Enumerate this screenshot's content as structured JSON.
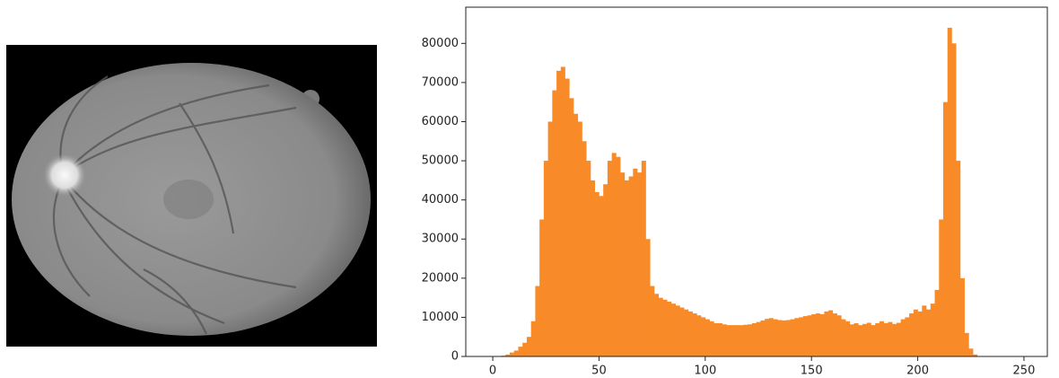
{
  "chart_data": {
    "type": "histogram",
    "bins": [
      0,
      2,
      4,
      6,
      8,
      10,
      12,
      14,
      16,
      18,
      20,
      22,
      24,
      26,
      28,
      30,
      32,
      34,
      36,
      38,
      40,
      42,
      44,
      46,
      48,
      50,
      52,
      54,
      56,
      58,
      60,
      62,
      64,
      66,
      68,
      70,
      72,
      74,
      76,
      78,
      80,
      82,
      84,
      86,
      88,
      90,
      92,
      94,
      96,
      98,
      100,
      102,
      104,
      106,
      108,
      110,
      112,
      114,
      116,
      118,
      120,
      122,
      124,
      126,
      128,
      130,
      132,
      134,
      136,
      138,
      140,
      142,
      144,
      146,
      148,
      150,
      152,
      154,
      156,
      158,
      160,
      162,
      164,
      166,
      168,
      170,
      172,
      174,
      176,
      178,
      180,
      182,
      184,
      186,
      188,
      190,
      192,
      194,
      196,
      198,
      200,
      202,
      204,
      206,
      208,
      210,
      212,
      214,
      216,
      218,
      220,
      222,
      224,
      226,
      228,
      230,
      232,
      234,
      236,
      238,
      240,
      242,
      244,
      246,
      248,
      250,
      252,
      254,
      256
    ],
    "counts": [
      0,
      0,
      200,
      500,
      1000,
      1500,
      2500,
      3500,
      5000,
      9000,
      18000,
      35000,
      50000,
      60000,
      68000,
      73000,
      74000,
      71000,
      66000,
      62000,
      60000,
      55000,
      50000,
      45000,
      42000,
      41000,
      44000,
      50000,
      52000,
      51000,
      47000,
      45000,
      46000,
      48000,
      47000,
      50000,
      30000,
      18000,
      16000,
      15000,
      14500,
      14000,
      13500,
      13000,
      12500,
      12000,
      11500,
      11000,
      10500,
      10000,
      9500,
      9000,
      8500,
      8500,
      8200,
      8000,
      8000,
      8000,
      8000,
      8100,
      8200,
      8500,
      8800,
      9200,
      9600,
      9800,
      9500,
      9300,
      9200,
      9300,
      9500,
      9800,
      10000,
      10300,
      10500,
      10800,
      11000,
      10800,
      11500,
      11800,
      11000,
      10500,
      9500,
      9000,
      8200,
      8500,
      8000,
      8300,
      8600,
      8000,
      8500,
      9000,
      8500,
      8800,
      8300,
      8600,
      9500,
      10000,
      11000,
      12000,
      11500,
      13000,
      12000,
      13500,
      17000,
      35000,
      65000,
      84000,
      80000,
      50000,
      20000,
      6000,
      2000,
      500,
      0,
      0,
      0,
      0,
      0,
      0,
      0,
      0,
      0,
      0,
      0,
      0,
      0,
      0
    ],
    "color": "#f88a28",
    "xlim": [
      -12.7,
      261
    ],
    "ylim": [
      0,
      89250
    ],
    "xticks": [
      0,
      50,
      100,
      150,
      200,
      250
    ],
    "yticks": [
      0,
      10000,
      20000,
      30000,
      40000,
      50000,
      60000,
      70000,
      80000
    ]
  }
}
